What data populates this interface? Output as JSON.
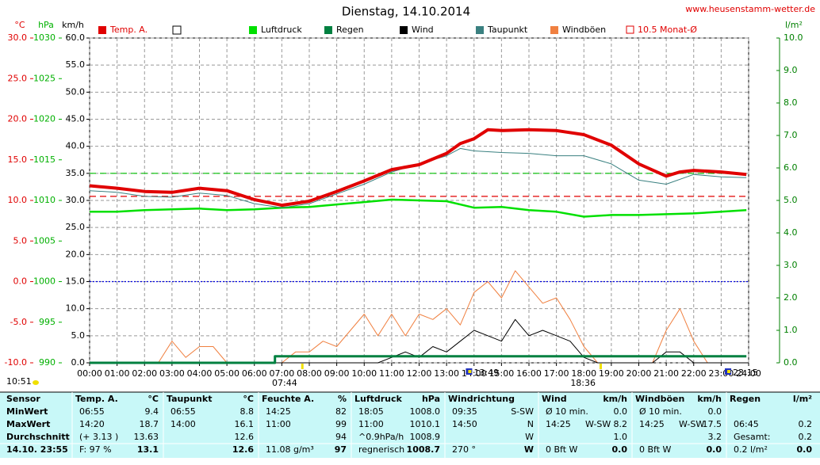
{
  "chart_data": {
    "type": "line",
    "title": "Dienstag, 14.10.2014",
    "url": "www.heusenstamm-wetter.de",
    "xlim": [
      0,
      24
    ],
    "xticks": [
      {
        "value": 0,
        "label": "00:00"
      },
      {
        "value": 1,
        "label": "01:00"
      },
      {
        "value": 2,
        "label": "02:00"
      },
      {
        "value": 3,
        "label": "03:00"
      },
      {
        "value": 4,
        "label": "04:00"
      },
      {
        "value": 5,
        "label": "05:00"
      },
      {
        "value": 6,
        "label": "06:00"
      },
      {
        "value": 7,
        "label": "07:00"
      },
      {
        "value": 8,
        "label": "08:00"
      },
      {
        "value": 9,
        "label": "09:00"
      },
      {
        "value": 10,
        "label": "10:00"
      },
      {
        "value": 11,
        "label": "11:00"
      },
      {
        "value": 12,
        "label": "12:00"
      },
      {
        "value": 13,
        "label": "13:00"
      },
      {
        "value": 14,
        "label": "14:00"
      },
      {
        "value": 15,
        "label": "15:00"
      },
      {
        "value": 16,
        "label": "16:00"
      },
      {
        "value": 17,
        "label": "17:00"
      },
      {
        "value": 18,
        "label": "18:00"
      },
      {
        "value": 19,
        "label": "19:00"
      },
      {
        "value": 20,
        "label": "20:00"
      },
      {
        "value": 21,
        "label": "21:00"
      },
      {
        "value": 22,
        "label": "22:00"
      },
      {
        "value": 23,
        "label": "23:00"
      },
      {
        "value": 24,
        "label": "24:00"
      }
    ],
    "grid": true,
    "axes": [
      {
        "unit": "°C",
        "color": "#e00000",
        "lim": [
          -10,
          30
        ],
        "ticks": [
          {
            "value": -10,
            "label": "-10.0"
          },
          {
            "value": -5,
            "label": "-5.0"
          },
          {
            "value": 0,
            "label": "0.0"
          },
          {
            "value": 5,
            "label": "5.0"
          },
          {
            "value": 10,
            "label": "10.0"
          },
          {
            "value": 15,
            "label": "15.0"
          },
          {
            "value": 20,
            "label": "20.0"
          },
          {
            "value": 25,
            "label": "25.0"
          },
          {
            "value": 30,
            "label": "30.0"
          }
        ]
      },
      {
        "unit": "hPa",
        "color": "#00b000",
        "lim": [
          990,
          1030
        ],
        "ticks": [
          990,
          995,
          1000,
          1005,
          1010,
          1015,
          1020,
          1025,
          1030
        ]
      },
      {
        "unit": "km/h",
        "color": "#000000",
        "lim": [
          0,
          60
        ],
        "ticks": [
          {
            "value": 0,
            "label": "0.0"
          },
          {
            "value": 5,
            "label": "5.0"
          },
          {
            "value": 10,
            "label": "10.0"
          },
          {
            "value": 15,
            "label": "15.0"
          },
          {
            "value": 20,
            "label": "20.0"
          },
          {
            "value": 25,
            "label": "25.0"
          },
          {
            "value": 30,
            "label": "30.0"
          },
          {
            "value": 35,
            "label": "35.0"
          },
          {
            "value": 40,
            "label": "40.0"
          },
          {
            "value": 45,
            "label": "45.0"
          },
          {
            "value": 50,
            "label": "50.0"
          },
          {
            "value": 55,
            "label": "55.0"
          },
          {
            "value": 60,
            "label": "60.0"
          }
        ]
      },
      {
        "unit": "l/m²",
        "color": "#008000",
        "lim": [
          0,
          10
        ],
        "ticks": [
          {
            "value": 0,
            "label": "0.0"
          },
          {
            "value": 1,
            "label": "1.0"
          },
          {
            "value": 2,
            "label": "2.0"
          },
          {
            "value": 3,
            "label": "3.0"
          },
          {
            "value": 4,
            "label": "4.0"
          },
          {
            "value": 5,
            "label": "5.0"
          },
          {
            "value": 6,
            "label": "6.0"
          },
          {
            "value": 7,
            "label": "7.0"
          },
          {
            "value": 8,
            "label": "8.0"
          },
          {
            "value": 9,
            "label": "9.0"
          },
          {
            "value": 10,
            "label": "10.0"
          }
        ]
      }
    ],
    "series": [
      {
        "name": "Temp. A.",
        "color": "#e00000",
        "axis": 0,
        "width": 4,
        "x": [
          0,
          1,
          2,
          3,
          4,
          5,
          6,
          7,
          8,
          9,
          10,
          11,
          12,
          13,
          13.5,
          14,
          14.5,
          15,
          16,
          17,
          18,
          19,
          20,
          21,
          21.5,
          22,
          23,
          23.92
        ],
        "values": [
          11.8,
          11.5,
          11.1,
          11.0,
          11.5,
          11.2,
          10.1,
          9.4,
          9.9,
          11.1,
          12.4,
          13.8,
          14.4,
          15.8,
          17.0,
          17.6,
          18.7,
          18.6,
          18.7,
          18.6,
          18.1,
          16.8,
          14.5,
          13.0,
          13.5,
          13.7,
          13.5,
          13.2
        ]
      },
      {
        "name": "Luftdruck",
        "color": "#00e000",
        "axis": 1,
        "width": 2.5,
        "x": [
          0,
          1,
          2,
          3,
          4,
          5,
          6,
          7,
          8,
          9,
          10,
          11,
          12,
          13,
          14,
          15,
          16,
          17,
          18,
          19,
          20,
          21,
          22,
          23,
          23.92
        ],
        "values": [
          1008.6,
          1008.6,
          1008.8,
          1008.9,
          1009.0,
          1008.8,
          1008.9,
          1009.1,
          1009.2,
          1009.5,
          1009.8,
          1010.1,
          1010.0,
          1009.9,
          1009.1,
          1009.2,
          1008.8,
          1008.6,
          1008.0,
          1008.2,
          1008.2,
          1008.3,
          1008.4,
          1008.6,
          1008.8
        ]
      },
      {
        "name": "Regen",
        "color": "#008040",
        "axis": 3,
        "width": 3,
        "x": [
          0,
          6.75,
          6.75,
          23.92
        ],
        "values": [
          0,
          0,
          0.2,
          0.2
        ]
      },
      {
        "name": "Wind",
        "color": "#000000",
        "axis": 2,
        "width": 1,
        "x": [
          0,
          0.5,
          1,
          1.5,
          2,
          2.5,
          3,
          3.5,
          4,
          4.5,
          5,
          5.5,
          6,
          6.5,
          7,
          7.5,
          8,
          8.5,
          9,
          9.5,
          10,
          10.5,
          11,
          11.5,
          12,
          12.5,
          13,
          13.5,
          14,
          14.5,
          15,
          15.5,
          16,
          16.5,
          17,
          17.5,
          18,
          18.5,
          19,
          19.5,
          20,
          20.5,
          21,
          21.5,
          22,
          22.5,
          23,
          23.5,
          24
        ],
        "values": [
          0,
          0,
          0,
          0,
          0,
          0,
          0,
          0,
          0,
          0,
          0,
          0,
          0,
          0,
          0,
          0,
          0,
          0,
          0,
          0,
          0,
          0,
          1,
          2,
          1,
          3,
          2,
          4,
          6,
          5,
          4,
          8,
          5,
          6,
          5,
          4,
          1,
          0,
          0,
          0,
          0,
          0,
          2,
          2,
          0,
          0,
          0,
          0,
          0
        ]
      },
      {
        "name": "Taupunkt",
        "color": "#3a8080",
        "axis": 0,
        "width": 1,
        "x": [
          0,
          1,
          2,
          3,
          4,
          5,
          6,
          7,
          8,
          9,
          10,
          11,
          12,
          13,
          13.5,
          14,
          15,
          16,
          17,
          18,
          19,
          20,
          21,
          22,
          23,
          23.92
        ],
        "values": [
          11.2,
          11.0,
          10.5,
          10.4,
          10.9,
          10.6,
          9.6,
          9.1,
          9.6,
          10.8,
          12.0,
          13.5,
          14.5,
          15.5,
          16.4,
          16.1,
          15.9,
          15.8,
          15.5,
          15.5,
          14.5,
          12.5,
          12.0,
          13.2,
          12.9,
          12.8
        ]
      },
      {
        "name": "Windböen",
        "color": "#f08040",
        "axis": 2,
        "width": 1,
        "x": [
          0,
          0.5,
          1,
          1.5,
          2,
          2.5,
          3,
          3.5,
          4,
          4.5,
          5,
          5.5,
          6,
          6.5,
          7,
          7.5,
          8,
          8.5,
          9,
          9.5,
          10,
          10.5,
          11,
          11.5,
          12,
          12.5,
          13,
          13.5,
          14,
          14.5,
          15,
          15.5,
          16,
          16.5,
          17,
          17.5,
          18,
          18.5,
          19,
          19.5,
          20,
          20.5,
          21,
          21.5,
          22,
          22.5,
          23,
          23.5,
          24
        ],
        "values": [
          0,
          0,
          0,
          0,
          0,
          0,
          4,
          1,
          3,
          3,
          0,
          0,
          0,
          0,
          0,
          2,
          2,
          4,
          3,
          6,
          9,
          5,
          9,
          5,
          9,
          8,
          10,
          7,
          13,
          15,
          12,
          17,
          14,
          11,
          12,
          8,
          3,
          0,
          0,
          0,
          0,
          0,
          6,
          10,
          4,
          0,
          0,
          0,
          0
        ]
      }
    ],
    "ref_lines": [
      {
        "label": "10.5 Monat-Ø",
        "value": 10.5,
        "axis": 0,
        "color": "#e00000",
        "style": "dashed"
      },
      {
        "value": 35,
        "axis": 2,
        "color": "#00c000",
        "style": "dashed"
      },
      {
        "value": 0,
        "axis": 0,
        "color": "#0000e0",
        "style": "dotted"
      }
    ],
    "markers": [
      {
        "label": "07:44",
        "value": 7.733
      },
      {
        "label": "18:36",
        "value": 18.6
      },
      {
        "label": "13:49",
        "value": 13.817
      },
      {
        "label": "23:15",
        "value": 23.25
      }
    ],
    "info_time": "10:51"
  },
  "table": {
    "columns": [
      {
        "header": "Sensor",
        "rows": [
          {
            "l": "MinWert"
          },
          {
            "l": "MaxWert"
          },
          {
            "l": "Durchschnitt"
          },
          {
            "l": "14.10. 23:55"
          }
        ]
      },
      {
        "header": "Temp. A.",
        "unit": "°C",
        "rows": [
          {
            "l": "06:55",
            "r": "9.4"
          },
          {
            "l": "14:20",
            "r": "18.7"
          },
          {
            "l": "(+ 3.13 )",
            "r": "13.63"
          },
          {
            "l": "F: 97 %",
            "r": "13.1"
          }
        ]
      },
      {
        "header": "Taupunkt",
        "unit": "°C",
        "rows": [
          {
            "l": "06:55",
            "r": "8.8"
          },
          {
            "l": "14:00",
            "r": "16.1"
          },
          {
            "r": "12.6"
          },
          {
            "r": "12.6"
          }
        ]
      },
      {
        "header": "Feuchte A.",
        "unit": "%",
        "rows": [
          {
            "l": "14:25",
            "r": "82"
          },
          {
            "l": "11:00",
            "r": "99"
          },
          {
            "r": "94"
          },
          {
            "l": "11.08 g/m³",
            "r": "97"
          }
        ]
      },
      {
        "header": "Luftdruck",
        "unit": "hPa",
        "rows": [
          {
            "l": "18:05",
            "r": "1008.0"
          },
          {
            "l": "11:00",
            "r": "1010.1"
          },
          {
            "l": "^0.9hPa/h",
            "r": "1008.9"
          },
          {
            "l": "regnerisch",
            "r": "1008.7"
          }
        ]
      },
      {
        "header": "Windrichtung",
        "rows": [
          {
            "l": "09:35",
            "r": "S-SW"
          },
          {
            "l": "14:50",
            "r": "N"
          },
          {
            "r": "W"
          },
          {
            "l": "270 °",
            "r": "W"
          }
        ]
      },
      {
        "header": "Wind",
        "unit": "km/h",
        "rows": [
          {
            "l": "Ø 10 min.",
            "r": "0.0"
          },
          {
            "l": "14:25",
            "m": "W-SW",
            "r": "8.2"
          },
          {
            "r": "1.0"
          },
          {
            "l": "0 Bft W",
            "r": "0.0"
          }
        ]
      },
      {
        "header": "Windböen",
        "unit": "km/h",
        "rows": [
          {
            "l": "Ø 10 min.",
            "r": "0.0"
          },
          {
            "l": "14:25",
            "m": "W-SW",
            "r": "17.5"
          },
          {
            "r": "3.2"
          },
          {
            "l": "0 Bft W",
            "r": "0.0"
          }
        ]
      },
      {
        "header": "Regen",
        "unit": "l/m²",
        "rows": [
          null,
          {
            "l": "06:45",
            "r": "0.2"
          },
          {
            "l": "Gesamt:",
            "r": "0.2"
          },
          {
            "l": "0.2 l/m²",
            "r": "0.0"
          }
        ]
      }
    ]
  }
}
